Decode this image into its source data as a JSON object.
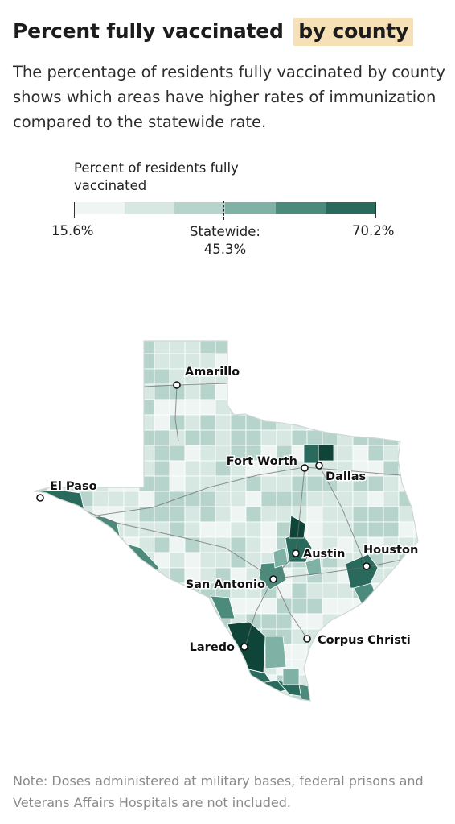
{
  "header": {
    "title_main": "Percent fully vaccinated",
    "title_highlight": "by county",
    "description": "The percentage of residents fully vaccinated by county shows which areas have higher rates of immunization compared to the statewide rate."
  },
  "legend": {
    "title": "Percent of residents fully vaccinated",
    "min_label": "15.6%",
    "statewide_label_line1": "Statewide:",
    "statewide_label_line2": "45.3%",
    "max_label": "70.2%",
    "colors": [
      "#eef5f3",
      "#d7e8e3",
      "#b6d4cb",
      "#7fb1a4",
      "#4c8a7c",
      "#2a6a5c",
      "#0f4438"
    ]
  },
  "map": {
    "cities": [
      {
        "name": "Amarillo"
      },
      {
        "name": "Fort Worth"
      },
      {
        "name": "Dallas"
      },
      {
        "name": "El Paso"
      },
      {
        "name": "Austin"
      },
      {
        "name": "Houston"
      },
      {
        "name": "San Antonio"
      },
      {
        "name": "Corpus Christi"
      },
      {
        "name": "Laredo"
      }
    ]
  },
  "footer": {
    "note": "Note: Doses administered at military bases, federal prisons and Veterans Affairs Hospitals are not included."
  }
}
